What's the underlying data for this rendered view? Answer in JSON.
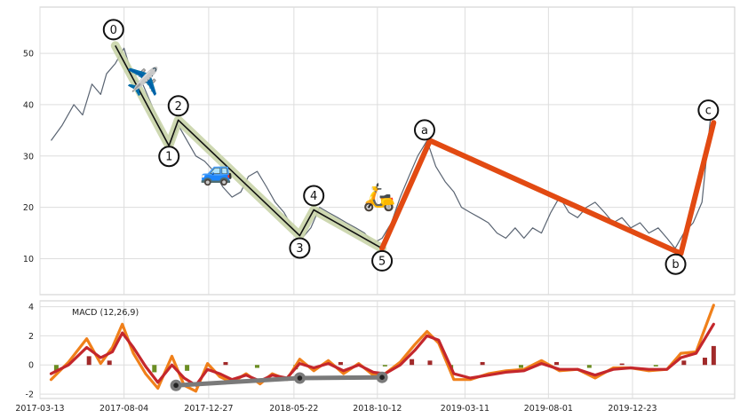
{
  "chart_data": [
    {
      "type": "line",
      "panel": "price",
      "title": "",
      "xlabel": "",
      "ylabel": "",
      "x_range": [
        "2017-03-13",
        "2020-06-15"
      ],
      "ylim": [
        3,
        59
      ],
      "yticks": [
        10,
        20,
        30,
        40,
        50
      ],
      "grid": true,
      "colors": {
        "price": "#5a6472",
        "impulse_fill": "#c9d4a8",
        "impulse_line": "#111111",
        "correction": "#e24a12"
      },
      "series": [
        {
          "values_desc": "price",
          "x": [
            "2017-04-01",
            "2017-04-20",
            "2017-05-10",
            "2017-05-25",
            "2017-06-10",
            "2017-06-25",
            "2017-07-05",
            "2017-07-20",
            "2017-08-04",
            "2017-08-20",
            "2017-09-05",
            "2017-09-20",
            "2017-10-05",
            "2017-10-20",
            "2017-11-05",
            "2017-11-20",
            "2017-12-05",
            "2017-12-20",
            "2018-01-05",
            "2018-01-20",
            "2018-02-05",
            "2018-02-20",
            "2018-03-05",
            "2018-03-20",
            "2018-04-05",
            "2018-04-20",
            "2018-05-05",
            "2018-05-20",
            "2018-06-05",
            "2018-06-20",
            "2018-07-05",
            "2018-07-20",
            "2018-08-05",
            "2018-08-20",
            "2018-09-05",
            "2018-09-20",
            "2018-10-05",
            "2018-10-20",
            "2018-11-05",
            "2018-11-20",
            "2018-12-05",
            "2018-12-20",
            "2019-01-05",
            "2019-01-20",
            "2019-02-05",
            "2019-02-20",
            "2019-03-05",
            "2019-03-20",
            "2019-04-05",
            "2019-04-20",
            "2019-05-05",
            "2019-05-20",
            "2019-06-05",
            "2019-06-20",
            "2019-07-05",
            "2019-07-20",
            "2019-08-05",
            "2019-08-20",
            "2019-09-05",
            "2019-09-20",
            "2019-10-05",
            "2019-10-20",
            "2019-11-05",
            "2019-11-20",
            "2019-12-05",
            "2019-12-20",
            "2020-01-05",
            "2020-01-20",
            "2020-02-05",
            "2020-02-20",
            "2020-03-05",
            "2020-03-20",
            "2020-04-05",
            "2020-04-20",
            "2020-05-05"
          ],
          "y": [
            33,
            36,
            40,
            38,
            44,
            42,
            46,
            48,
            51,
            45,
            44,
            40,
            36,
            31,
            36,
            33,
            30,
            29,
            27,
            24,
            22,
            23,
            26,
            27,
            24,
            21,
            19,
            16,
            14,
            16,
            20,
            19,
            18,
            17,
            16,
            15,
            13,
            14,
            17,
            22,
            26,
            30,
            33,
            28,
            25,
            23,
            20,
            19,
            18,
            17,
            15,
            14,
            16,
            14,
            16,
            15,
            19,
            22,
            19,
            18,
            20,
            21,
            19,
            17,
            18,
            16,
            17,
            15,
            16,
            14,
            12,
            15,
            17,
            21,
            38
          ]
        }
      ],
      "impulse_wave": {
        "labels": [
          "0",
          "1",
          "2",
          "3",
          "4",
          "5"
        ],
        "x": [
          "2017-07-20",
          "2017-10-20",
          "2017-11-05",
          "2018-06-01",
          "2018-06-25",
          "2018-10-20"
        ],
        "y": [
          51.5,
          32,
          37,
          14.5,
          19.5,
          12
        ]
      },
      "correction_wave": {
        "labels": [
          "a",
          "b",
          "c"
        ],
        "x": [
          "2018-10-20",
          "2019-01-10",
          "2020-03-15",
          "2020-05-10"
        ],
        "y": [
          12,
          33,
          11,
          36.5
        ],
        "label_points": [
          "2019-01-10",
          "2020-03-15",
          "2020-05-10"
        ]
      },
      "emoji_markers": [
        {
          "icon": "airplane",
          "glyph": "✈️",
          "x": "2017-09-05",
          "y": 44.5
        },
        {
          "icon": "car",
          "glyph": "🚙",
          "x": "2018-01-10",
          "y": 27
        },
        {
          "icon": "scooter",
          "glyph": "🛵",
          "x": "2018-10-15",
          "y": 22
        }
      ]
    },
    {
      "type": "line",
      "panel": "macd",
      "title": "",
      "legend": "MACD (12,26,9)",
      "legend_position": "top-left",
      "xlabel": "",
      "ylabel": "",
      "x_range": [
        "2017-03-13",
        "2020-06-15"
      ],
      "xticks": [
        "2017-03-13",
        "2017-08-04",
        "2017-12-27",
        "2018-05-22",
        "2018-10-12",
        "2019-03-11",
        "2019-08-01",
        "2019-12-23"
      ],
      "ylim": [
        -2.3,
        4.4
      ],
      "yticks": [
        -2,
        0,
        2,
        4
      ],
      "grid": true,
      "colors": {
        "macd": "#f0801a",
        "signal": "#c4272c",
        "hist_pos": "#a12a2a",
        "hist_neg": "#6b8e23",
        "trend": "#7a7a7a"
      },
      "series": [
        {
          "name": "MACD",
          "x": [
            "2017-04-01",
            "2017-05-01",
            "2017-06-01",
            "2017-06-25",
            "2017-07-15",
            "2017-08-01",
            "2017-08-20",
            "2017-09-10",
            "2017-10-01",
            "2017-10-25",
            "2017-11-15",
            "2017-12-05",
            "2017-12-25",
            "2018-01-15",
            "2018-02-05",
            "2018-03-01",
            "2018-03-25",
            "2018-04-15",
            "2018-05-10",
            "2018-06-01",
            "2018-06-25",
            "2018-07-20",
            "2018-08-15",
            "2018-09-10",
            "2018-10-05",
            "2018-10-25",
            "2018-11-20",
            "2018-12-15",
            "2019-01-05",
            "2019-01-25",
            "2019-02-20",
            "2019-03-20",
            "2019-04-20",
            "2019-05-20",
            "2019-06-20",
            "2019-07-20",
            "2019-08-20",
            "2019-09-20",
            "2019-10-20",
            "2019-11-20",
            "2019-12-20",
            "2020-01-20",
            "2020-02-20",
            "2020-03-15",
            "2020-04-10",
            "2020-05-10"
          ],
          "values": [
            -1.0,
            0.2,
            1.8,
            0.1,
            1.2,
            2.8,
            0.8,
            -0.6,
            -1.6,
            0.6,
            -1.4,
            -1.8,
            0.1,
            -0.8,
            -1.2,
            -0.6,
            -1.3,
            -0.6,
            -1.0,
            0.4,
            -0.4,
            0.3,
            -0.6,
            0.1,
            -0.7,
            -0.6,
            0.2,
            1.4,
            2.3,
            1.5,
            -1.0,
            -1.0,
            -0.6,
            -0.4,
            -0.3,
            0.3,
            -0.4,
            -0.3,
            -0.9,
            -0.2,
            -0.2,
            -0.4,
            -0.3,
            0.8,
            0.9,
            4.1
          ]
        },
        {
          "name": "Signal",
          "x": [
            "2017-04-01",
            "2017-05-01",
            "2017-06-01",
            "2017-06-25",
            "2017-07-15",
            "2017-08-01",
            "2017-08-20",
            "2017-09-10",
            "2017-10-01",
            "2017-10-25",
            "2017-11-15",
            "2017-12-05",
            "2017-12-25",
            "2018-01-15",
            "2018-02-05",
            "2018-03-01",
            "2018-03-25",
            "2018-04-15",
            "2018-05-10",
            "2018-06-01",
            "2018-06-25",
            "2018-07-20",
            "2018-08-15",
            "2018-09-10",
            "2018-10-05",
            "2018-10-25",
            "2018-11-20",
            "2018-12-15",
            "2019-01-05",
            "2019-01-25",
            "2019-02-20",
            "2019-03-20",
            "2019-04-20",
            "2019-05-20",
            "2019-06-20",
            "2019-07-20",
            "2019-08-20",
            "2019-09-20",
            "2019-10-20",
            "2019-11-20",
            "2019-12-20",
            "2020-01-20",
            "2020-02-20",
            "2020-03-15",
            "2020-04-10",
            "2020-05-10"
          ],
          "values": [
            -0.6,
            0.0,
            1.2,
            0.5,
            0.9,
            2.2,
            1.2,
            -0.1,
            -1.2,
            0.0,
            -0.9,
            -1.4,
            -0.3,
            -0.6,
            -1.0,
            -0.7,
            -1.1,
            -0.7,
            -0.9,
            0.1,
            -0.2,
            0.1,
            -0.4,
            0.0,
            -0.5,
            -0.6,
            0.0,
            1.0,
            2.0,
            1.7,
            -0.6,
            -0.9,
            -0.7,
            -0.5,
            -0.4,
            0.1,
            -0.3,
            -0.3,
            -0.7,
            -0.3,
            -0.2,
            -0.3,
            -0.3,
            0.5,
            0.8,
            2.8
          ]
        }
      ],
      "histogram": {
        "x": [
          "2017-04-10",
          "2017-06-05",
          "2017-07-10",
          "2017-09-25",
          "2017-11-20",
          "2018-01-25",
          "2018-03-20",
          "2018-05-25",
          "2018-08-10",
          "2018-10-25",
          "2018-12-10",
          "2019-01-10",
          "2019-02-15",
          "2019-04-10",
          "2019-06-15",
          "2019-08-15",
          "2019-10-10",
          "2019-12-05",
          "2020-02-01",
          "2020-03-20",
          "2020-04-25",
          "2020-05-10"
        ],
        "values": [
          -0.4,
          0.6,
          0.3,
          -0.5,
          -0.4,
          0.2,
          -0.2,
          -0.3,
          0.2,
          -0.1,
          0.4,
          0.3,
          -0.4,
          0.2,
          -0.2,
          0.2,
          -0.2,
          0.1,
          -0.1,
          0.3,
          0.5,
          1.3
        ]
      },
      "trendline": {
        "x": [
          "2017-11-01",
          "2018-06-01",
          "2018-10-20"
        ],
        "y": [
          -1.4,
          -0.9,
          -0.85
        ]
      }
    }
  ]
}
